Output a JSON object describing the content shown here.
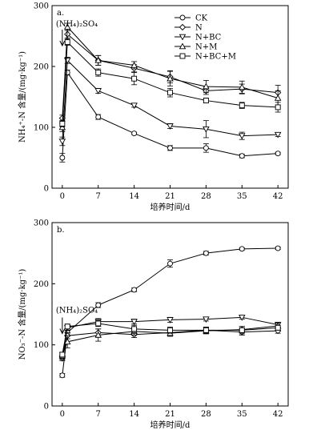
{
  "chart_data": [
    {
      "type": "line",
      "panel_label": "a.",
      "annotation": "(NH₄)₂SO₄",
      "xlabel": "培养时间/d",
      "ylabel": "NH₄⁺-N 含量/(mg·kg⁻¹)",
      "x": [
        0,
        1,
        7,
        14,
        21,
        28,
        35,
        42
      ],
      "xticks": [
        0,
        7,
        14,
        21,
        28,
        35,
        42
      ],
      "yticks": [
        0,
        100,
        200,
        300
      ],
      "xlim": [
        -2,
        44
      ],
      "ylim": [
        0,
        300
      ],
      "legend_position": "top-right",
      "series": [
        {
          "name": "CK",
          "marker": "circle",
          "values": [
            50,
            190,
            117,
            90,
            66,
            66,
            53,
            57
          ],
          "errors": [
            7,
            4,
            4,
            2,
            4,
            7,
            3,
            2
          ]
        },
        {
          "name": "N",
          "marker": "diamond",
          "values": [
            115,
            253,
            210,
            197,
            183,
            160,
            163,
            157
          ],
          "errors": [
            5,
            6,
            8,
            6,
            10,
            6,
            8,
            12
          ]
        },
        {
          "name": "N+BC",
          "marker": "triangle-down",
          "values": [
            77,
            210,
            160,
            136,
            102,
            97,
            86,
            88
          ],
          "errors": [
            7,
            5,
            4,
            3,
            4,
            14,
            6,
            3
          ]
        },
        {
          "name": "N+M",
          "marker": "triangle-up",
          "values": [
            100,
            265,
            210,
            202,
            180,
            167,
            166,
            148
          ],
          "errors": [
            7,
            6,
            8,
            6,
            12,
            10,
            10,
            12
          ]
        },
        {
          "name": "N+BC+M",
          "marker": "square",
          "values": [
            106,
            240,
            190,
            180,
            157,
            144,
            136,
            133
          ],
          "errors": [
            5,
            5,
            6,
            10,
            7,
            4,
            5,
            8
          ]
        }
      ]
    },
    {
      "type": "line",
      "panel_label": "b.",
      "annotation": "(NH₄)₂SO₄",
      "xlabel": "培养时间/d",
      "ylabel": "NO₃⁻-N 含量/(mg·kg⁻¹)",
      "x": [
        0,
        1,
        7,
        14,
        21,
        28,
        35,
        42
      ],
      "xticks": [
        0,
        7,
        14,
        21,
        28,
        35,
        42
      ],
      "yticks": [
        0,
        100,
        200,
        300
      ],
      "xlim": [
        -2,
        44
      ],
      "ylim": [
        0,
        300
      ],
      "series": [
        {
          "name": "CK",
          "marker": "circle",
          "values": [
            50,
            120,
            165,
            190,
            233,
            250,
            257,
            258
          ],
          "errors": [
            3,
            4,
            4,
            3,
            6,
            3,
            2,
            2
          ]
        },
        {
          "name": "N",
          "marker": "diamond",
          "values": [
            80,
            115,
            120,
            117,
            120,
            124,
            121,
            123
          ],
          "errors": [
            4,
            5,
            6,
            5,
            5,
            5,
            5,
            4
          ]
        },
        {
          "name": "N+BC",
          "marker": "triangle-down",
          "values": [
            78,
            128,
            138,
            138,
            141,
            142,
            145,
            133
          ],
          "errors": [
            4,
            4,
            5,
            4,
            4,
            3,
            3,
            4
          ]
        },
        {
          "name": "N+M",
          "marker": "triangle-up",
          "values": [
            82,
            105,
            116,
            122,
            119,
            123,
            125,
            131
          ],
          "errors": [
            5,
            10,
            10,
            6,
            5,
            5,
            5,
            5
          ]
        },
        {
          "name": "N+BC+M",
          "marker": "square",
          "values": [
            84,
            130,
            135,
            126,
            124,
            124,
            124,
            128
          ],
          "errors": [
            4,
            4,
            5,
            6,
            5,
            5,
            6,
            4
          ]
        }
      ]
    }
  ]
}
